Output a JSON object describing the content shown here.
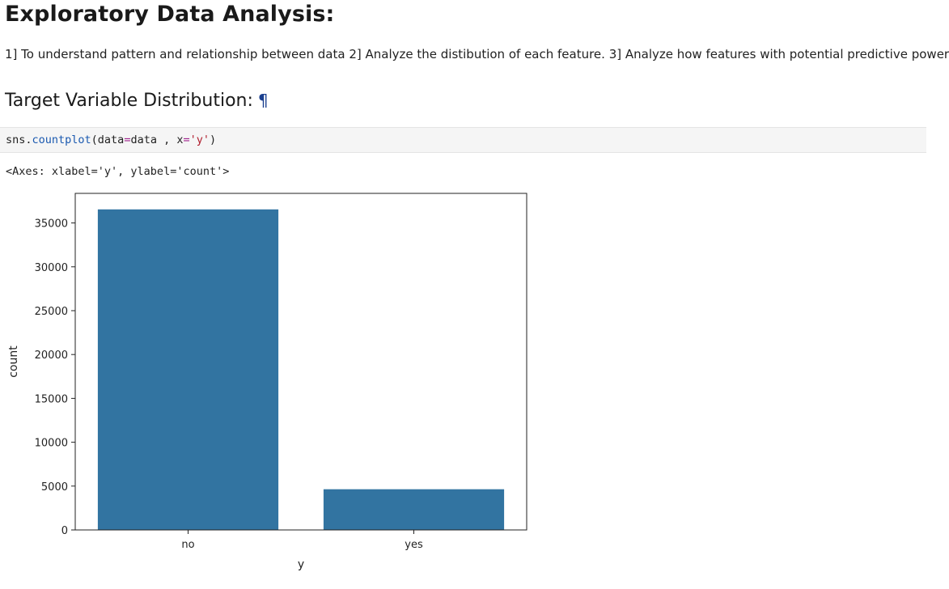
{
  "heading": "Exploratory Data Analysis:",
  "paragraph": "1] To understand pattern and relationship between data 2] Analyze the distibution of each feature. 3] Analyze how features with potential predictive power",
  "subheading": "Target Variable Distribution:",
  "anchor_symbol": "¶",
  "code": {
    "obj": "sns.",
    "fn": "countplot",
    "args_a": "(data",
    "eq1": "=",
    "args_b": "data , x",
    "eq2": "=",
    "str": "'y'",
    "close": ")"
  },
  "output_text": "<Axes: xlabel='y', ylabel='count'>",
  "chart_data": {
    "type": "bar",
    "categories": [
      "no",
      "yes"
    ],
    "values": [
      36548,
      4640
    ],
    "xlabel": "y",
    "ylabel": "count",
    "ylim": [
      0,
      38374
    ],
    "yticks": [
      0,
      5000,
      10000,
      15000,
      20000,
      25000,
      30000,
      35000
    ],
    "bar_color": "#3274a1",
    "grid": false
  }
}
